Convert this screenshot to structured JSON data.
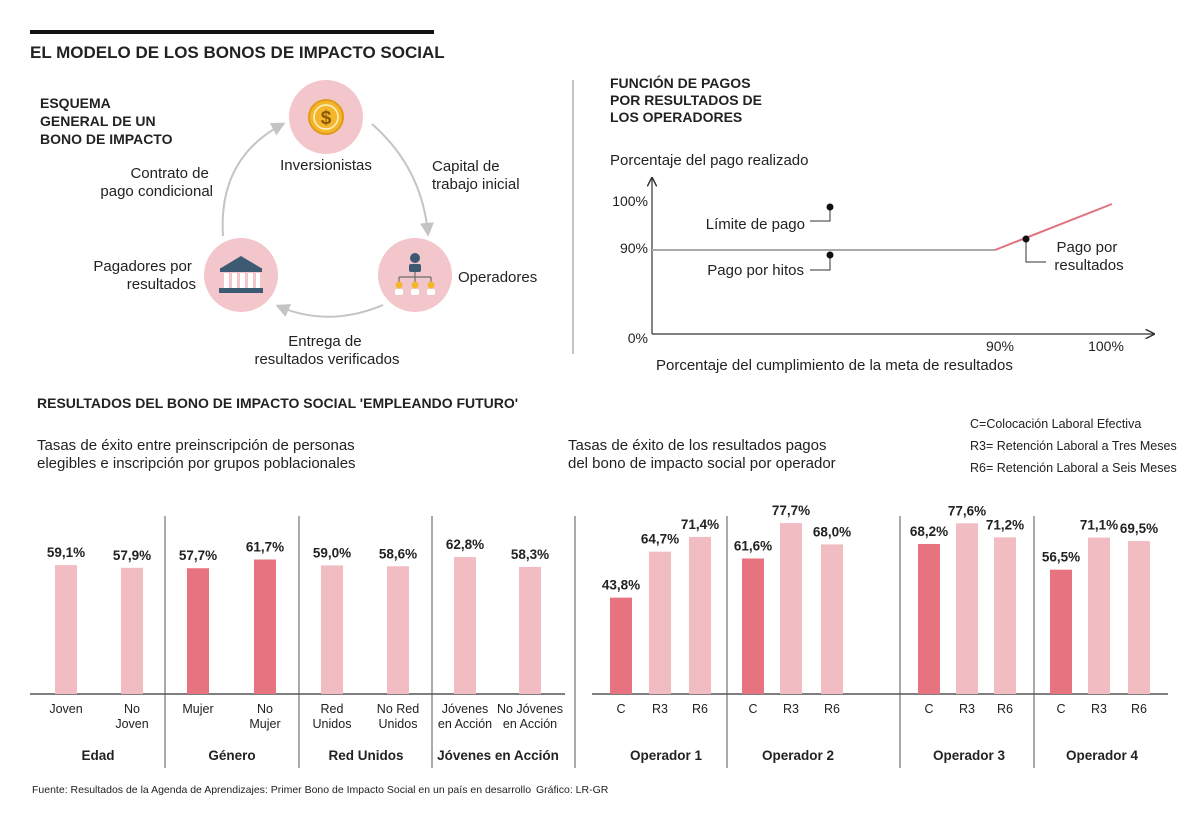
{
  "main_title": "EL MODELO DE LOS BONOS DE IMPACTO SOCIAL",
  "scheme": {
    "title_lines": [
      "ESQUEMA",
      "GENERAL DE UN",
      "BONO DE IMPACTO"
    ],
    "investors": "Inversionistas",
    "operators": "Operadores",
    "payers_lines": [
      "Pagadores por",
      "resultados"
    ],
    "contract_lines": [
      "Contrato de",
      "pago condicional"
    ],
    "capital_lines": [
      "Capital de",
      "trabajo inicial"
    ],
    "delivery_lines": [
      "Entrega de",
      "resultados verificados"
    ],
    "colors": {
      "circle": "#f3c6cb",
      "arrow": "#c8c8c8",
      "coin": "#f5b62e",
      "bank": "#3d5a73"
    }
  },
  "payment_function": {
    "title_lines": [
      "FUNCIÓN DE PAGOS",
      "POR RESULTADOS DE",
      "LOS OPERADORES"
    ],
    "ylabel": "Porcentaje del pago realizado",
    "xlabel": "Porcentaje del cumplimiento de la meta de resultados",
    "yticks": [
      "100%",
      "90%",
      "0%"
    ],
    "xticks": [
      "90%",
      "100%"
    ],
    "annotations": {
      "limit": "Límite de pago",
      "milestones": "Pago por hitos",
      "results_lines": [
        "Pago por",
        "resultados"
      ]
    },
    "colors": {
      "flat": "#aaaaaa",
      "rise": "#e0737e"
    }
  },
  "results_title": "RESULTADOS DEL BONO DE IMPACTO SOCIAL 'EMPLEANDO FUTURO'",
  "legend_lines": [
    "C=Colocación Laboral Efectiva",
    "R3= Retención Laboral a Tres Meses",
    "R6= Retención Laboral a Seis Meses"
  ],
  "footer": {
    "source": "Fuente: Resultados de la Agenda de Aprendizajes: Primer Bono de Impacto Social en un país en desarrollo",
    "credit": "Gráfico: LR-GR"
  },
  "chart_data": [
    {
      "type": "bar",
      "title_lines": [
        "Tasas de éxito entre preinscripción de personas",
        "elegibles e inscripción por grupos poblacionales"
      ],
      "groups": [
        {
          "name": "Edad",
          "bars": [
            {
              "label_lines": [
                "Joven"
              ],
              "value": 59.1,
              "display": "59,1%",
              "highlight": false
            },
            {
              "label_lines": [
                "No",
                "Joven"
              ],
              "value": 57.9,
              "display": "57,9%",
              "highlight": false
            }
          ]
        },
        {
          "name": "Género",
          "bars": [
            {
              "label_lines": [
                "Mujer"
              ],
              "value": 57.7,
              "display": "57,7%",
              "highlight": true
            },
            {
              "label_lines": [
                "No",
                "Mujer"
              ],
              "value": 61.7,
              "display": "61,7%",
              "highlight": true
            }
          ]
        },
        {
          "name": "Red Unidos",
          "bars": [
            {
              "label_lines": [
                "Red",
                "Unidos"
              ],
              "value": 59.0,
              "display": "59,0%",
              "highlight": false
            },
            {
              "label_lines": [
                "No Red",
                "Unidos"
              ],
              "value": 58.6,
              "display": "58,6%",
              "highlight": false
            }
          ]
        },
        {
          "name": "Jóvenes en Acción",
          "bars": [
            {
              "label_lines": [
                "Jóvenes",
                "en Acción"
              ],
              "value": 62.8,
              "display": "62,8%",
              "highlight": false
            },
            {
              "label_lines": [
                "No Jóvenes",
                "en Acción"
              ],
              "value": 58.3,
              "display": "58,3%",
              "highlight": false
            }
          ]
        }
      ],
      "colors": {
        "base": "#f2bcc3",
        "highlight": "#e6737f"
      }
    },
    {
      "type": "bar",
      "title_lines": [
        "Tasas de éxito de los resultados pagos",
        "del bono de impacto social por operador"
      ],
      "groups": [
        {
          "name": "Operador 1",
          "bars": [
            {
              "label_lines": [
                "C"
              ],
              "value": 43.8,
              "display": "43,8%",
              "highlight": true
            },
            {
              "label_lines": [
                "R3"
              ],
              "value": 64.7,
              "display": "64,7%",
              "highlight": false
            },
            {
              "label_lines": [
                "R6"
              ],
              "value": 71.4,
              "display": "71,4%",
              "highlight": false
            }
          ]
        },
        {
          "name": "Operador 2",
          "bars": [
            {
              "label_lines": [
                "C"
              ],
              "value": 61.6,
              "display": "61,6%",
              "highlight": true
            },
            {
              "label_lines": [
                "R3"
              ],
              "value": 77.7,
              "display": "77,7%",
              "highlight": false
            },
            {
              "label_lines": [
                "R6"
              ],
              "value": 68.0,
              "display": "68,0%",
              "highlight": false
            }
          ]
        },
        {
          "name": "Operador 3",
          "bars": [
            {
              "label_lines": [
                "C"
              ],
              "value": 68.2,
              "display": "68,2%",
              "highlight": true
            },
            {
              "label_lines": [
                "R3"
              ],
              "value": 77.6,
              "display": "77,6%",
              "highlight": false
            },
            {
              "label_lines": [
                "R6"
              ],
              "value": 71.2,
              "display": "71,2%",
              "highlight": false
            }
          ]
        },
        {
          "name": "Operador 4",
          "bars": [
            {
              "label_lines": [
                "C"
              ],
              "value": 56.5,
              "display": "56,5%",
              "highlight": true
            },
            {
              "label_lines": [
                "R3"
              ],
              "value": 71.1,
              "display": "71,1%",
              "highlight": false
            },
            {
              "label_lines": [
                "R6"
              ],
              "value": 69.5,
              "display": "69,5%",
              "highlight": false
            }
          ]
        }
      ],
      "colors": {
        "base": "#f2bcc3",
        "highlight": "#e6737f"
      }
    }
  ]
}
